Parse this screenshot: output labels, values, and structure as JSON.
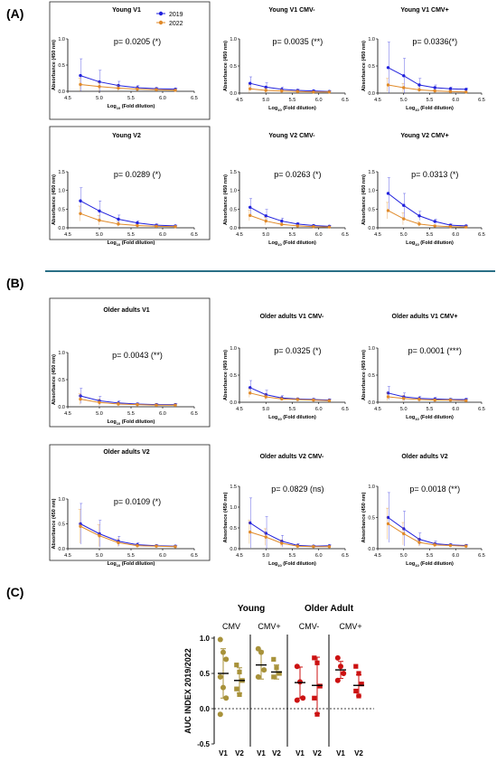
{
  "sections": [
    {
      "label": "(A)"
    },
    {
      "label": "(B)"
    },
    {
      "label": "(C)"
    }
  ],
  "colors": {
    "s2019": "#2222dd",
    "s2022": "#e08a2a",
    "young": "#a8923a",
    "older": "#cc1111",
    "divider": "#2a6f86"
  },
  "legend": {
    "items": [
      {
        "name": "2019",
        "color": "#2222dd"
      },
      {
        "name": "2022",
        "color": "#e08a2a"
      }
    ]
  },
  "panel_axis": {
    "xlabel_main": "Log",
    "xlabel_sub": "10",
    "xlabel_rest": " (Fold dilution)",
    "ylabel": "Absorbance (450 nm)",
    "xticks": [
      "4.5",
      "5.0",
      "5.5",
      "6.0",
      "6.5"
    ]
  },
  "chart_data": [
    {
      "type": "line",
      "title": "Young V1",
      "annotation": "p= 0.0205 (*)",
      "boxed": true,
      "x": [
        4.7,
        5.0,
        5.3,
        5.6,
        5.9,
        6.2
      ],
      "xlim": [
        4.5,
        6.5
      ],
      "ylim": [
        0,
        1.0
      ],
      "yticks": [
        "0.0",
        "0.5",
        "1.0"
      ],
      "series": [
        {
          "name": "2019",
          "values": [
            0.3,
            0.18,
            0.11,
            0.07,
            0.05,
            0.04
          ],
          "err": [
            0.32,
            0.22,
            0.08,
            0.04,
            0.02,
            0.02
          ]
        },
        {
          "name": "2022",
          "values": [
            0.13,
            0.09,
            0.06,
            0.04,
            0.03,
            0.02
          ],
          "err": [
            0.12,
            0.08,
            0.05,
            0.03,
            0.02,
            0.01
          ]
        }
      ]
    },
    {
      "type": "line",
      "title": "Young V1 CMV-",
      "annotation": "p= 0.0035 (**)",
      "boxed": false,
      "x": [
        4.7,
        5.0,
        5.3,
        5.6,
        5.9,
        6.2
      ],
      "xlim": [
        4.5,
        6.5
      ],
      "ylim": [
        0,
        1.0
      ],
      "yticks": [
        "0.0",
        "0.5",
        "1.0"
      ],
      "series": [
        {
          "name": "2019",
          "values": [
            0.18,
            0.11,
            0.07,
            0.05,
            0.04,
            0.03
          ],
          "err": [
            0.12,
            0.08,
            0.04,
            0.02,
            0.02,
            0.01
          ]
        },
        {
          "name": "2022",
          "values": [
            0.08,
            0.05,
            0.04,
            0.03,
            0.02,
            0.02
          ],
          "err": [
            0.07,
            0.04,
            0.03,
            0.02,
            0.01,
            0.01
          ]
        }
      ]
    },
    {
      "type": "line",
      "title": "Young V1 CMV+",
      "annotation": "p= 0.0336(*)",
      "boxed": false,
      "x": [
        4.7,
        5.0,
        5.3,
        5.6,
        5.9,
        6.2
      ],
      "xlim": [
        4.5,
        6.5
      ],
      "ylim": [
        0,
        1.0
      ],
      "yticks": [
        "0.0",
        "0.5",
        "1.0"
      ],
      "series": [
        {
          "name": "2019",
          "values": [
            0.47,
            0.32,
            0.15,
            0.1,
            0.08,
            0.07
          ],
          "err": [
            0.47,
            0.32,
            0.12,
            0.05,
            0.03,
            0.02
          ]
        },
        {
          "name": "2022",
          "values": [
            0.15,
            0.1,
            0.06,
            0.04,
            0.03,
            0.02
          ],
          "err": [
            0.12,
            0.08,
            0.04,
            0.02,
            0.02,
            0.01
          ]
        }
      ]
    },
    {
      "type": "line",
      "title": "Young V2",
      "annotation": "p= 0.0289 (*)",
      "boxed": true,
      "x": [
        4.7,
        5.0,
        5.3,
        5.6,
        5.9,
        6.2
      ],
      "xlim": [
        4.5,
        6.5
      ],
      "ylim": [
        0,
        1.5
      ],
      "yticks": [
        "0.0",
        "0.5",
        "1.0",
        "1.5"
      ],
      "series": [
        {
          "name": "2019",
          "values": [
            0.72,
            0.45,
            0.23,
            0.13,
            0.07,
            0.05
          ],
          "err": [
            0.35,
            0.27,
            0.11,
            0.06,
            0.03,
            0.02
          ]
        },
        {
          "name": "2022",
          "values": [
            0.38,
            0.2,
            0.1,
            0.06,
            0.04,
            0.03
          ],
          "err": [
            0.2,
            0.13,
            0.06,
            0.03,
            0.02,
            0.01
          ]
        }
      ]
    },
    {
      "type": "line",
      "title": "Young V2 CMV-",
      "annotation": "p= 0.0263 (*)",
      "boxed": false,
      "x": [
        4.7,
        5.0,
        5.3,
        5.6,
        5.9,
        6.2
      ],
      "xlim": [
        4.5,
        6.5
      ],
      "ylim": [
        0,
        1.5
      ],
      "yticks": [
        "0.0",
        "0.5",
        "1.0",
        "1.5"
      ],
      "series": [
        {
          "name": "2019",
          "values": [
            0.55,
            0.32,
            0.18,
            0.1,
            0.06,
            0.04
          ],
          "err": [
            0.23,
            0.17,
            0.08,
            0.04,
            0.02,
            0.02
          ]
        },
        {
          "name": "2022",
          "values": [
            0.33,
            0.18,
            0.09,
            0.05,
            0.03,
            0.02
          ],
          "err": [
            0.14,
            0.1,
            0.05,
            0.02,
            0.01,
            0.01
          ]
        }
      ]
    },
    {
      "type": "line",
      "title": "Young V2 CMV+",
      "annotation": "p= 0.0313 (*)",
      "boxed": false,
      "x": [
        4.7,
        5.0,
        5.3,
        5.6,
        5.9,
        6.2
      ],
      "xlim": [
        4.5,
        6.5
      ],
      "ylim": [
        0,
        1.5
      ],
      "yticks": [
        "0.0",
        "0.5",
        "1.0",
        "1.5"
      ],
      "series": [
        {
          "name": "2019",
          "values": [
            0.92,
            0.6,
            0.32,
            0.17,
            0.07,
            0.05
          ],
          "err": [
            0.42,
            0.32,
            0.12,
            0.06,
            0.03,
            0.02
          ]
        },
        {
          "name": "2022",
          "values": [
            0.46,
            0.24,
            0.1,
            0.05,
            0.03,
            0.02
          ],
          "err": [
            0.22,
            0.16,
            0.06,
            0.02,
            0.01,
            0.01
          ]
        }
      ]
    },
    {
      "type": "line",
      "title": "Older adults V1",
      "annotation": "p= 0.0043 (**)",
      "boxed": true,
      "x": [
        4.7,
        5.0,
        5.3,
        5.6,
        5.9,
        6.2
      ],
      "xlim": [
        4.5,
        6.5
      ],
      "ylim": [
        0,
        1.0
      ],
      "yticks": [
        "0.0",
        "0.5",
        "1.0"
      ],
      "series": [
        {
          "name": "2019",
          "values": [
            0.2,
            0.11,
            0.07,
            0.05,
            0.04,
            0.04
          ],
          "err": [
            0.14,
            0.08,
            0.04,
            0.02,
            0.02,
            0.02
          ]
        },
        {
          "name": "2022",
          "values": [
            0.14,
            0.08,
            0.05,
            0.04,
            0.03,
            0.03
          ],
          "err": [
            0.1,
            0.06,
            0.03,
            0.02,
            0.02,
            0.01
          ]
        }
      ]
    },
    {
      "type": "line",
      "title": "Older adults V1 CMV-",
      "annotation": "p= 0.0325 (*)",
      "boxed": false,
      "x": [
        4.7,
        5.0,
        5.3,
        5.6,
        5.9,
        6.2
      ],
      "xlim": [
        4.5,
        6.5
      ],
      "ylim": [
        0,
        1.0
      ],
      "yticks": [
        "0.0",
        "0.5",
        "1.0"
      ],
      "series": [
        {
          "name": "2019",
          "values": [
            0.27,
            0.14,
            0.08,
            0.06,
            0.05,
            0.04
          ],
          "err": [
            0.13,
            0.08,
            0.04,
            0.02,
            0.02,
            0.02
          ]
        },
        {
          "name": "2022",
          "values": [
            0.17,
            0.1,
            0.06,
            0.05,
            0.04,
            0.03
          ],
          "err": [
            0.08,
            0.05,
            0.03,
            0.02,
            0.02,
            0.01
          ]
        }
      ]
    },
    {
      "type": "line",
      "title": "Older adults V1 CMV+",
      "annotation": "p= 0.0001 (***)",
      "boxed": false,
      "x": [
        4.7,
        5.0,
        5.3,
        5.6,
        5.9,
        6.2
      ],
      "xlim": [
        4.5,
        6.5
      ],
      "ylim": [
        0,
        1.0
      ],
      "yticks": [
        "0.0",
        "0.5",
        "1.0"
      ],
      "series": [
        {
          "name": "2019",
          "values": [
            0.17,
            0.1,
            0.07,
            0.06,
            0.05,
            0.05
          ],
          "err": [
            0.12,
            0.07,
            0.04,
            0.03,
            0.02,
            0.02
          ]
        },
        {
          "name": "2022",
          "values": [
            0.1,
            0.07,
            0.05,
            0.04,
            0.04,
            0.03
          ],
          "err": [
            0.07,
            0.05,
            0.03,
            0.02,
            0.02,
            0.01
          ]
        }
      ]
    },
    {
      "type": "line",
      "title": "Older adults V2",
      "annotation": "p= 0.0109 (*)",
      "boxed": true,
      "x": [
        4.7,
        5.0,
        5.3,
        5.6,
        5.9,
        6.2
      ],
      "xlim": [
        4.5,
        6.5
      ],
      "ylim": [
        0,
        1.0
      ],
      "yticks": [
        "0.0",
        "0.5",
        "1.0"
      ],
      "series": [
        {
          "name": "2019",
          "values": [
            0.5,
            0.3,
            0.15,
            0.08,
            0.06,
            0.05
          ],
          "err": [
            0.41,
            0.27,
            0.1,
            0.04,
            0.02,
            0.02
          ]
        },
        {
          "name": "2022",
          "values": [
            0.45,
            0.26,
            0.12,
            0.06,
            0.05,
            0.04
          ],
          "err": [
            0.34,
            0.22,
            0.08,
            0.03,
            0.02,
            0.02
          ]
        }
      ]
    },
    {
      "type": "line",
      "title": "Older adults V2 CMV-",
      "annotation": "p= 0.0829 (ns)",
      "boxed": false,
      "x": [
        4.7,
        5.0,
        5.3,
        5.6,
        5.9,
        6.2
      ],
      "xlim": [
        4.5,
        6.5
      ],
      "ylim": [
        0,
        1.5
      ],
      "yticks": [
        "0.0",
        "0.5",
        "1.0",
        "1.5"
      ],
      "series": [
        {
          "name": "2019",
          "values": [
            0.62,
            0.37,
            0.18,
            0.08,
            0.06,
            0.07
          ],
          "err": [
            0.6,
            0.4,
            0.14,
            0.04,
            0.02,
            0.02
          ]
        },
        {
          "name": "2022",
          "values": [
            0.4,
            0.28,
            0.13,
            0.06,
            0.05,
            0.05
          ],
          "err": [
            0.28,
            0.2,
            0.08,
            0.03,
            0.02,
            0.02
          ]
        }
      ]
    },
    {
      "type": "line",
      "title": "Older adults V2",
      "annotation": "p= 0.0018 (**)",
      "boxed": false,
      "x": [
        4.7,
        5.0,
        5.3,
        5.6,
        5.9,
        6.2
      ],
      "xlim": [
        4.5,
        6.5
      ],
      "ylim": [
        0,
        1.0
      ],
      "yticks": [
        "0.0",
        "0.5",
        "1.0"
      ],
      "series": [
        {
          "name": "2019",
          "values": [
            0.5,
            0.32,
            0.15,
            0.08,
            0.06,
            0.05
          ],
          "err": [
            0.4,
            0.28,
            0.1,
            0.04,
            0.02,
            0.02
          ]
        },
        {
          "name": "2022",
          "values": [
            0.4,
            0.24,
            0.1,
            0.06,
            0.05,
            0.04
          ],
          "err": [
            0.25,
            0.18,
            0.06,
            0.03,
            0.02,
            0.02
          ]
        }
      ]
    }
  ],
  "panel_c": {
    "type": "scatter",
    "ylabel": "AUC INDEX 2019/2022",
    "yticks": [
      "-0.5",
      "0.0",
      "0.5",
      "1.0"
    ],
    "ylim": [
      -0.5,
      1.0
    ],
    "groups_top": [
      "Young",
      "Older Adult"
    ],
    "cmv_labels": [
      "CMV",
      "CMV+",
      "CMV-",
      "CMV+"
    ],
    "visit_labels": [
      "V1",
      "V2",
      "V1",
      "V2",
      "V1",
      "V2",
      "V1",
      "V2"
    ],
    "note": "-",
    "columns": [
      {
        "group": "young",
        "cmv": "CMV",
        "visit": "V1",
        "marker": "circle",
        "points": [
          0.98,
          0.8,
          0.7,
          0.45,
          0.3,
          0.15,
          -0.08
        ],
        "mean": 0.5,
        "sd": 0.35
      },
      {
        "group": "young",
        "cmv": "CMV",
        "visit": "V2",
        "marker": "square",
        "points": [
          0.62,
          0.52,
          0.4,
          0.28,
          0.2
        ],
        "mean": 0.4,
        "sd": 0.18
      },
      {
        "group": "young",
        "cmv": "CMV+",
        "visit": "V1",
        "marker": "circle",
        "points": [
          0.85,
          0.8,
          0.55,
          0.45
        ],
        "mean": 0.62,
        "sd": 0.2
      },
      {
        "group": "young",
        "cmv": "CMV+",
        "visit": "V2",
        "marker": "square",
        "points": [
          0.7,
          0.58,
          0.5,
          0.45
        ],
        "mean": 0.52,
        "sd": 0.1
      },
      {
        "group": "older",
        "cmv": "CMV-",
        "visit": "V1",
        "marker": "circle",
        "points": [
          0.6,
          0.38,
          0.15,
          0.12
        ],
        "mean": 0.37,
        "sd": 0.22
      },
      {
        "group": "older",
        "cmv": "CMV-",
        "visit": "V2",
        "marker": "square",
        "points": [
          0.72,
          0.65,
          0.32,
          0.15,
          -0.08
        ],
        "mean": 0.33,
        "sd": 0.4
      },
      {
        "group": "older",
        "cmv": "CMV+",
        "visit": "V1",
        "marker": "circle",
        "points": [
          0.72,
          0.6,
          0.5,
          0.4
        ],
        "mean": 0.55,
        "sd": 0.12
      },
      {
        "group": "older",
        "cmv": "CMV+",
        "visit": "V2",
        "marker": "square",
        "points": [
          0.6,
          0.5,
          0.35,
          0.25,
          0.18
        ],
        "mean": 0.33,
        "sd": 0.15
      }
    ]
  }
}
